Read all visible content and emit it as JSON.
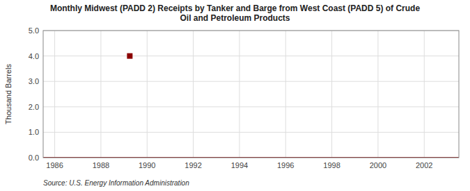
{
  "chart_data": {
    "type": "line",
    "title": "Monthly Midwest (PADD 2) Receipts by Tanker and Barge from West Coast (PADD 5) of Crude\nOil and Petroleum Products",
    "y_label": "Thousand Barrels",
    "source": "Source: U.S. Energy Information Administration",
    "xlim": [
      1985.5,
      2003.5
    ],
    "ylim": [
      0.0,
      5.0
    ],
    "xticks": [
      1986,
      1988,
      1990,
      1992,
      1994,
      1996,
      1998,
      2000,
      2002
    ],
    "yticks": [
      {
        "value": 0.0,
        "label": "0.0"
      },
      {
        "value": 1.0,
        "label": "1.0"
      },
      {
        "value": 2.0,
        "label": "2.0"
      },
      {
        "value": 3.0,
        "label": "3.0"
      },
      {
        "value": 4.0,
        "label": "4.0"
      },
      {
        "value": 5.0,
        "label": "5.0"
      }
    ],
    "grid": true,
    "series": [
      {
        "type": "line",
        "color": "#8b0000",
        "x": [
          1985.5,
          2003.5
        ],
        "values": [
          0.0,
          0.0
        ]
      },
      {
        "type": "scatter",
        "marker": "square",
        "color": "#8b0000",
        "x": [
          1989.25
        ],
        "values": [
          4.0
        ]
      }
    ]
  }
}
